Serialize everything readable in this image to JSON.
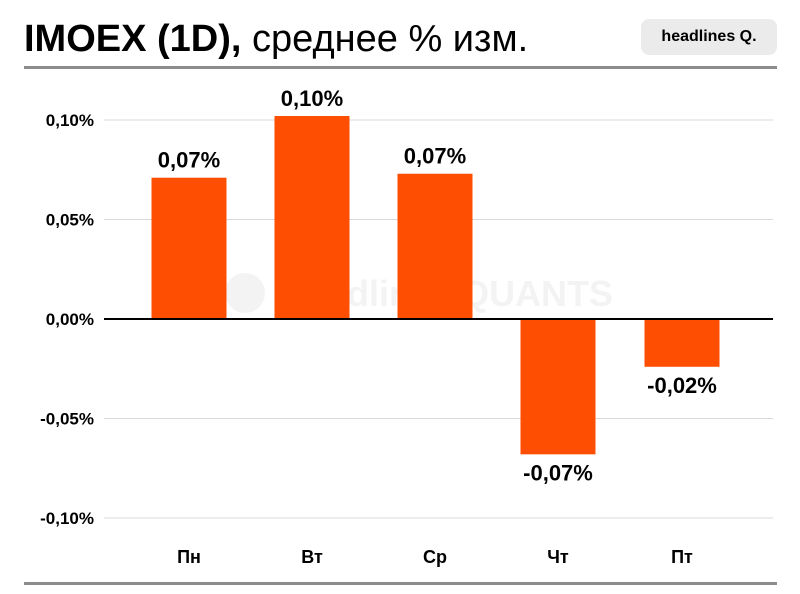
{
  "header": {
    "title_bold": "IMOEX (1D),",
    "title_light": "среднее % изм.",
    "brand": "headlines Q."
  },
  "watermark": {
    "text": "headlines QUANTS"
  },
  "colors": {
    "bar": "#fd4e02",
    "grid": "#d9d9d9",
    "zero_line": "#000000",
    "rule": "#8c8c8c",
    "badge": "#ebebeb"
  },
  "chart_data": {
    "type": "bar",
    "categories": [
      "Пн",
      "Вт",
      "Ср",
      "Чт",
      "Пт"
    ],
    "values": [
      0.071,
      0.102,
      0.073,
      -0.068,
      -0.024
    ],
    "data_labels": [
      "0,07%",
      "0,10%",
      "0,07%",
      "-0,07%",
      "-0,02%"
    ],
    "ylim": [
      -0.1,
      0.1
    ],
    "yticks": [
      0.1,
      0.05,
      0.0,
      -0.05,
      -0.1
    ],
    "ytick_labels": [
      "0,10%",
      "0,05%",
      "0,00%",
      "-0,05%",
      "-0,10%"
    ],
    "grid": true,
    "title": "IMOEX (1D), среднее % изм.",
    "xlabel": "",
    "ylabel": ""
  }
}
